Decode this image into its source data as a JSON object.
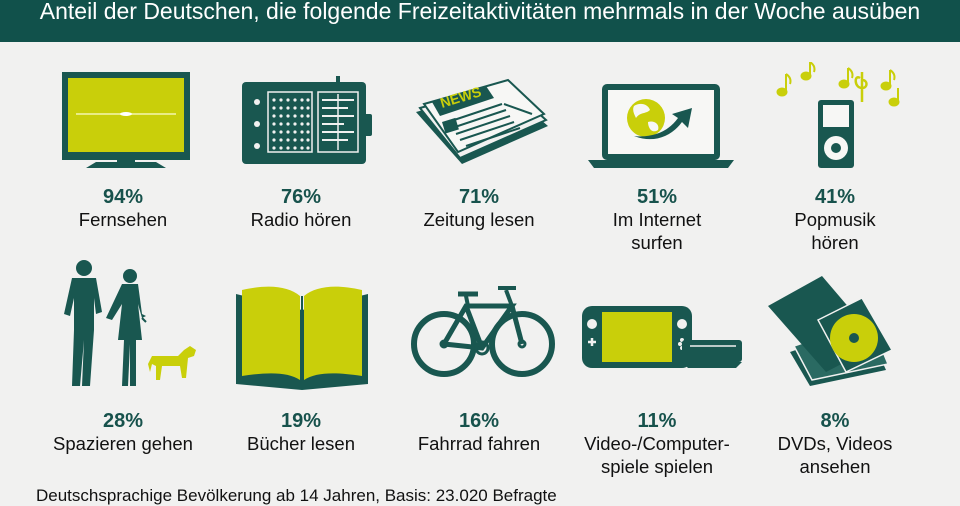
{
  "title": "Anteil der Deutschen, die folgende Freizeitaktivitäten mehrmals in der Woche ausüben",
  "footer": "Deutschsprachige Bevölkerung ab 14 Jahren, Basis: 23.020 Befragte",
  "colors": {
    "header": "#11514b",
    "teal": "#195750",
    "accent": "#c9cf0a",
    "background": "#f1f1f0"
  },
  "chart_data": {
    "type": "table",
    "title": "Anteil der Deutschen, die folgende Freizeitaktivitäten mehrmals in der Woche ausüben",
    "unit": "%",
    "categories": [
      "Fernsehen",
      "Radio hören",
      "Zeitung lesen",
      "Im Internet surfen",
      "Popmusik hören",
      "Spazieren gehen",
      "Bücher lesen",
      "Fahrrad fahren",
      "Video-/Computer-spiele spielen",
      "DVDs, Videos ansehen"
    ],
    "values": [
      94,
      76,
      71,
      51,
      41,
      28,
      19,
      16,
      11,
      8
    ],
    "items": [
      {
        "icon": "tv-icon",
        "value": "94%",
        "label": [
          "Fernsehen"
        ]
      },
      {
        "icon": "radio-icon",
        "value": "76%",
        "label": [
          "Radio hören"
        ]
      },
      {
        "icon": "newspaper-icon",
        "value": "71%",
        "label": [
          "Zeitung lesen"
        ]
      },
      {
        "icon": "laptop-globe-icon",
        "value": "51%",
        "label": [
          "Im Internet",
          "surfen"
        ]
      },
      {
        "icon": "music-player-icon",
        "value": "41%",
        "label": [
          "Popmusik",
          "hören"
        ]
      },
      {
        "icon": "walking-couple-icon",
        "value": "28%",
        "label": [
          "Spazieren gehen"
        ]
      },
      {
        "icon": "book-icon",
        "value": "19%",
        "label": [
          "Bücher lesen"
        ]
      },
      {
        "icon": "bicycle-icon",
        "value": "16%",
        "label": [
          "Fahrrad fahren"
        ]
      },
      {
        "icon": "game-console-icon",
        "value": "11%",
        "label": [
          "Video-/Computer-",
          "spiele spielen"
        ]
      },
      {
        "icon": "dvd-icon",
        "value": "8%",
        "label": [
          "DVDs, Videos",
          "ansehen"
        ]
      }
    ]
  }
}
